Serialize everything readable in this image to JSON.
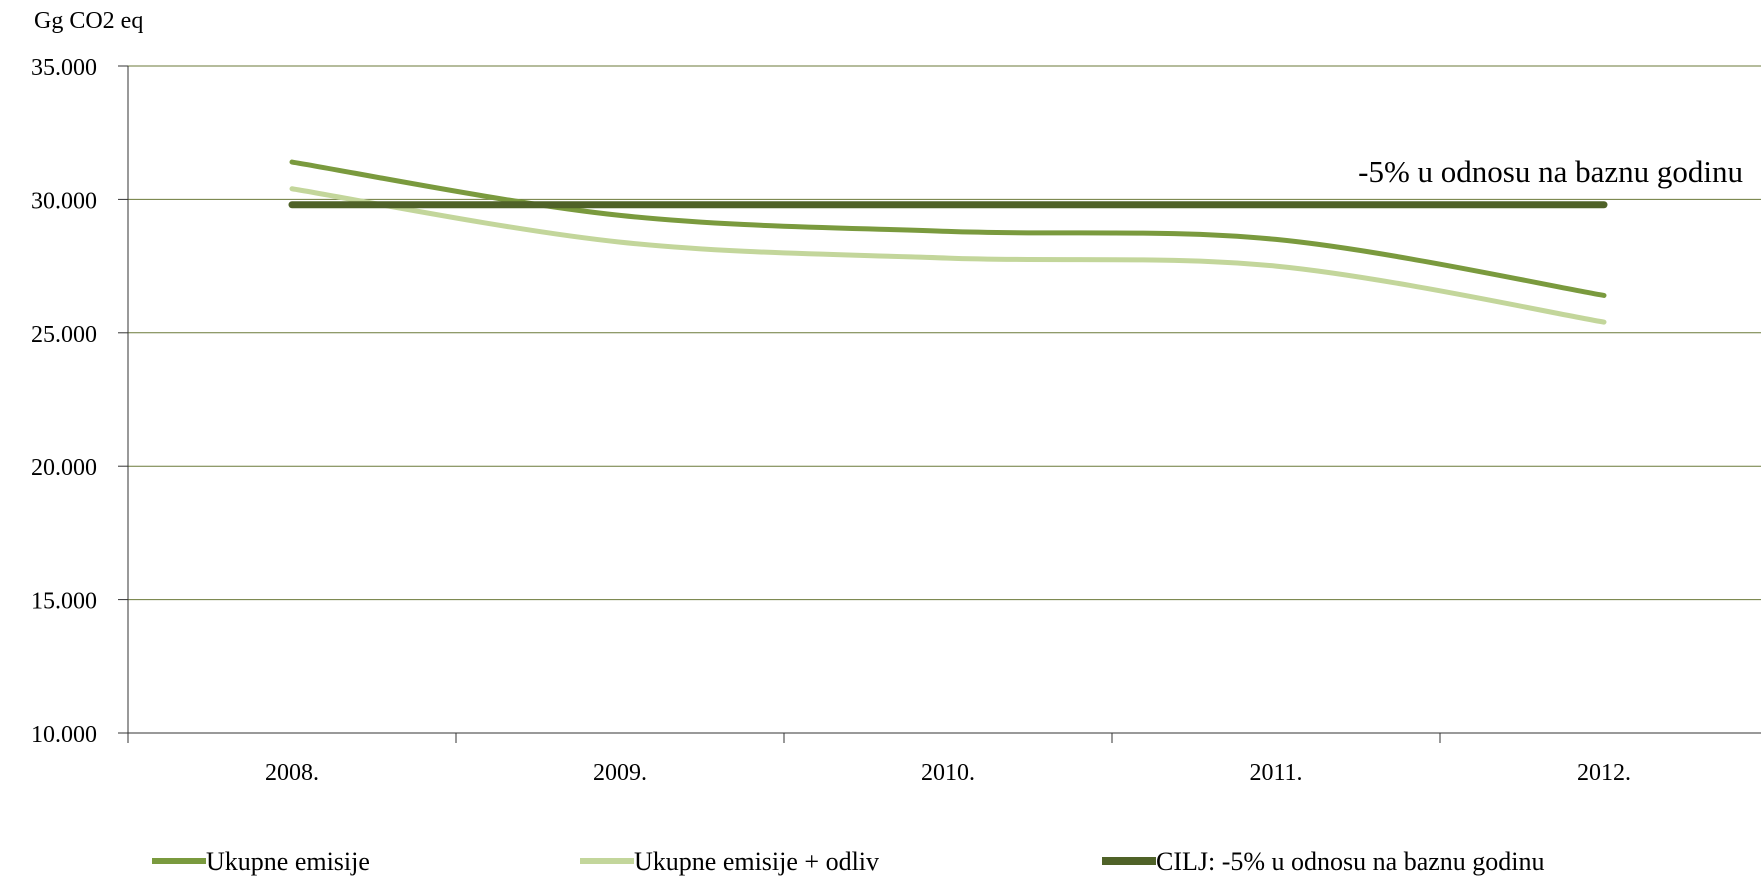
{
  "chart_data": {
    "type": "line",
    "title": "",
    "ylabel": "Gg CO2 eq",
    "xlabel": "",
    "categories": [
      "2008.",
      "2009.",
      "2010.",
      "2011.",
      "2012."
    ],
    "ylim": [
      10000,
      35000
    ],
    "yticks": [
      10000,
      15000,
      20000,
      25000,
      30000,
      35000
    ],
    "ytick_labels": [
      "10.000",
      "15.000",
      "20.000",
      "25.000",
      "30.000",
      "35.000"
    ],
    "grid": true,
    "smooth": true,
    "legend_position": "bottom",
    "series": [
      {
        "name": "Ukupne emisije",
        "values": [
          31400,
          29400,
          28800,
          28500,
          26400
        ],
        "color": "#7a9a3e"
      },
      {
        "name": "Ukupne emisije + odliv",
        "values": [
          30400,
          28400,
          27800,
          27500,
          25400
        ],
        "color": "#c3d69b"
      },
      {
        "name": "CILJ: -5% u odnosu na baznu godinu",
        "values": [
          29800,
          29800,
          29800,
          29800,
          29800
        ],
        "color": "#4f6228"
      }
    ],
    "annotation": "-5% u odnosu na baznu godinu"
  }
}
